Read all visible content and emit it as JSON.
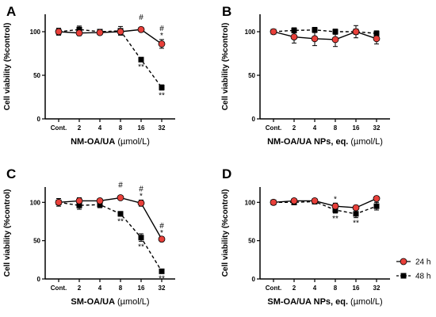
{
  "chart_data": [
    {
      "type": "line",
      "panel": "A",
      "xlabel": "NM-OA/UA",
      "xunit": "(µmol/L)",
      "ylabel": "Cell viability (%control)",
      "categories": [
        "Cont.",
        "2",
        "4",
        "8",
        "16",
        "32"
      ],
      "y_ticks": [
        0,
        50,
        100
      ],
      "ylim": [
        0,
        120
      ],
      "series": [
        {
          "name": "24 h",
          "values": [
            100,
            98.5,
            99,
            100,
            102.5,
            86
          ],
          "errors": [
            3,
            3,
            2,
            3,
            1,
            5
          ]
        },
        {
          "name": "48 h",
          "values": [
            100,
            102.5,
            100,
            101,
            68,
            36
          ],
          "errors": [
            4,
            4,
            2,
            5,
            2,
            3
          ]
        }
      ],
      "annotations_24h": [
        {
          "category": "16",
          "text": "#"
        },
        {
          "category": "32",
          "text": "#"
        },
        {
          "category": "32",
          "text": "*"
        }
      ],
      "annotations_48h": [
        {
          "category": "16",
          "text": "**"
        },
        {
          "category": "32",
          "text": "**"
        }
      ]
    },
    {
      "type": "line",
      "panel": "B",
      "xlabel": "NM-OA/UA NPs, eq.",
      "xunit": "(µmol/L)",
      "ylabel": "Cell viability (%control)",
      "categories": [
        "Cont.",
        "2",
        "4",
        "8",
        "16",
        "32"
      ],
      "y_ticks": [
        0,
        50,
        100
      ],
      "ylim": [
        0,
        120
      ],
      "series": [
        {
          "name": "24 h",
          "values": [
            100,
            94,
            92,
            91,
            100,
            92
          ],
          "errors": [
            2,
            7,
            8,
            8,
            7,
            6
          ]
        },
        {
          "name": "48 h",
          "values": [
            100,
            101.5,
            102,
            100,
            100,
            98
          ],
          "errors": [
            2,
            3,
            3,
            3,
            3,
            3
          ]
        }
      ],
      "annotations_24h": [],
      "annotations_48h": []
    },
    {
      "type": "line",
      "panel": "C",
      "xlabel": "SM-OA/UA",
      "xunit": "(µmol/L)",
      "ylabel": "Cell viability (%control)",
      "categories": [
        "Cont.",
        "2",
        "4",
        "8",
        "16",
        "32"
      ],
      "y_ticks": [
        0,
        50,
        100
      ],
      "ylim": [
        0,
        120
      ],
      "series": [
        {
          "name": "24 h",
          "values": [
            100,
            102,
            102,
            106,
            99,
            52
          ],
          "errors": [
            3,
            4,
            2,
            2,
            4,
            3
          ]
        },
        {
          "name": "48 h",
          "values": [
            100,
            96,
            97,
            85,
            54,
            10
          ],
          "errors": [
            5,
            5,
            4,
            3,
            5,
            2
          ]
        }
      ],
      "annotations_24h": [
        {
          "category": "8",
          "text": "#"
        },
        {
          "category": "16",
          "text": "#"
        },
        {
          "category": "16",
          "text": "*"
        },
        {
          "category": "32",
          "text": "#"
        },
        {
          "category": "32",
          "text": "*"
        }
      ],
      "annotations_48h": [
        {
          "category": "8",
          "text": "**"
        },
        {
          "category": "16",
          "text": "**"
        },
        {
          "category": "32",
          "text": "**"
        }
      ]
    },
    {
      "type": "line",
      "panel": "D",
      "xlabel": "SM-OA/UA NPs, eq.",
      "xunit": "(µmol/L)",
      "ylabel": "Cell viability (%control)",
      "categories": [
        "Cont.",
        "2",
        "4",
        "8",
        "16",
        "32"
      ],
      "y_ticks": [
        0,
        50,
        100
      ],
      "ylim": [
        0,
        120
      ],
      "series": [
        {
          "name": "24 h",
          "values": [
            100,
            102,
            102,
            95,
            93,
            105
          ],
          "errors": [
            2,
            2,
            2,
            4,
            3,
            3
          ]
        },
        {
          "name": "48 h",
          "values": [
            100,
            100,
            101,
            90,
            85,
            95
          ],
          "errors": [
            3,
            3,
            3,
            4,
            5,
            5
          ]
        }
      ],
      "annotations_24h": [
        {
          "category": "8",
          "text": "*"
        }
      ],
      "annotations_48h": [
        {
          "category": "8",
          "text": "**"
        },
        {
          "category": "16",
          "text": "**"
        }
      ]
    }
  ],
  "legend": {
    "placement": "right",
    "items": [
      {
        "label": "24 h",
        "marker": "circle",
        "line": "solid",
        "color": "#e8403a"
      },
      {
        "label": "48 h",
        "marker": "square",
        "line": "dashed",
        "color": "#000000"
      }
    ]
  },
  "colors": {
    "series_24h": "#e8403a",
    "series_48h": "#000000"
  }
}
